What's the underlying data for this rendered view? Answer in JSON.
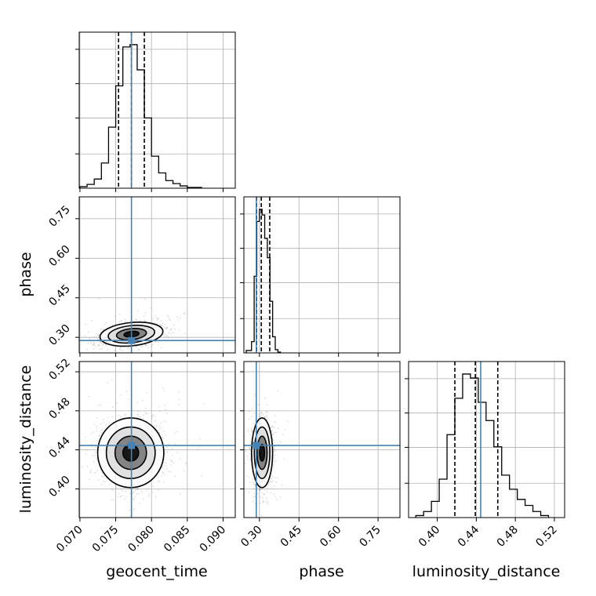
{
  "chart_data": {
    "type": "corner",
    "parameters": [
      "geocent_time",
      "phase",
      "luminosity_distance"
    ],
    "ranges": {
      "geocent_time": [
        0.0699,
        0.0917
      ],
      "phase": [
        0.241,
        0.833
      ],
      "luminosity_distance": [
        0.3706,
        0.5305
      ]
    },
    "ticks": {
      "geocent_time": [
        0.07,
        0.075,
        0.08,
        0.085,
        0.09
      ],
      "phase": [
        0.3,
        0.45,
        0.6,
        0.75
      ],
      "luminosity_distance": [
        0.4,
        0.44,
        0.48,
        0.52
      ]
    },
    "tick_labels": {
      "geocent_time": [
        "0.070",
        "0.075",
        "0.080",
        "0.085",
        "0.090"
      ],
      "phase": [
        "0.30",
        "0.45",
        "0.60",
        "0.75"
      ],
      "luminosity_distance": [
        "0.40",
        "0.44",
        "0.48",
        "0.52"
      ]
    },
    "truths": {
      "geocent_time": 0.0772,
      "phase": 0.288,
      "luminosity_distance": 0.4445
    },
    "quantiles": {
      "geocent_time": [
        0.0754,
        0.0772,
        0.079
      ],
      "phase": [
        0.289,
        0.307,
        0.339
      ],
      "luminosity_distance": [
        0.418,
        0.439,
        0.462
      ]
    },
    "histograms": {
      "geocent_time": {
        "edges": [
          0.07,
          0.071,
          0.072,
          0.073,
          0.074,
          0.075,
          0.076,
          0.077,
          0.078,
          0.079,
          0.08,
          0.081,
          0.082,
          0.083,
          0.084,
          0.085,
          0.086,
          0.087
        ],
        "counts": [
          2,
          5,
          12,
          33,
          80,
          134,
          185,
          188,
          155,
          92,
          42,
          20,
          10,
          6,
          3,
          1,
          1
        ]
      },
      "phase": {
        "edges": [
          0.25,
          0.27,
          0.28,
          0.29,
          0.3,
          0.31,
          0.32,
          0.33,
          0.34,
          0.35,
          0.36,
          0.37,
          0.38
        ],
        "counts": [
          3,
          14,
          95,
          163,
          178,
          171,
          142,
          118,
          64,
          20,
          4,
          1
        ]
      },
      "luminosity_distance": {
        "edges": [
          0.378,
          0.386,
          0.394,
          0.402,
          0.41,
          0.418,
          0.426,
          0.434,
          0.442,
          0.45,
          0.458,
          0.466,
          0.474,
          0.482,
          0.49,
          0.498,
          0.506,
          0.514
        ],
        "counts": [
          1,
          3,
          8,
          19,
          41,
          59,
          71,
          69,
          57,
          48,
          35,
          21,
          14,
          9,
          6,
          3,
          1
        ]
      }
    },
    "density_2d": {
      "phase_vs_geocent_time": {
        "center": [
          0.0772,
          0.312
        ],
        "sigma": [
          0.0021,
          0.021
        ],
        "corr": 0.35
      },
      "luminosity_distance_vs_geocent_time": {
        "center": [
          0.0771,
          0.437
        ],
        "sigma": [
          0.0022,
          0.017
        ],
        "corr": 0.0
      },
      "luminosity_distance_vs_phase": {
        "center": [
          0.31,
          0.437
        ],
        "sigma": [
          0.019,
          0.017
        ],
        "corr": 0.0
      }
    },
    "colors": {
      "truth": "#4682b4",
      "hist": "#000000",
      "grid": "#b0b0b0",
      "points": "#000000"
    }
  }
}
